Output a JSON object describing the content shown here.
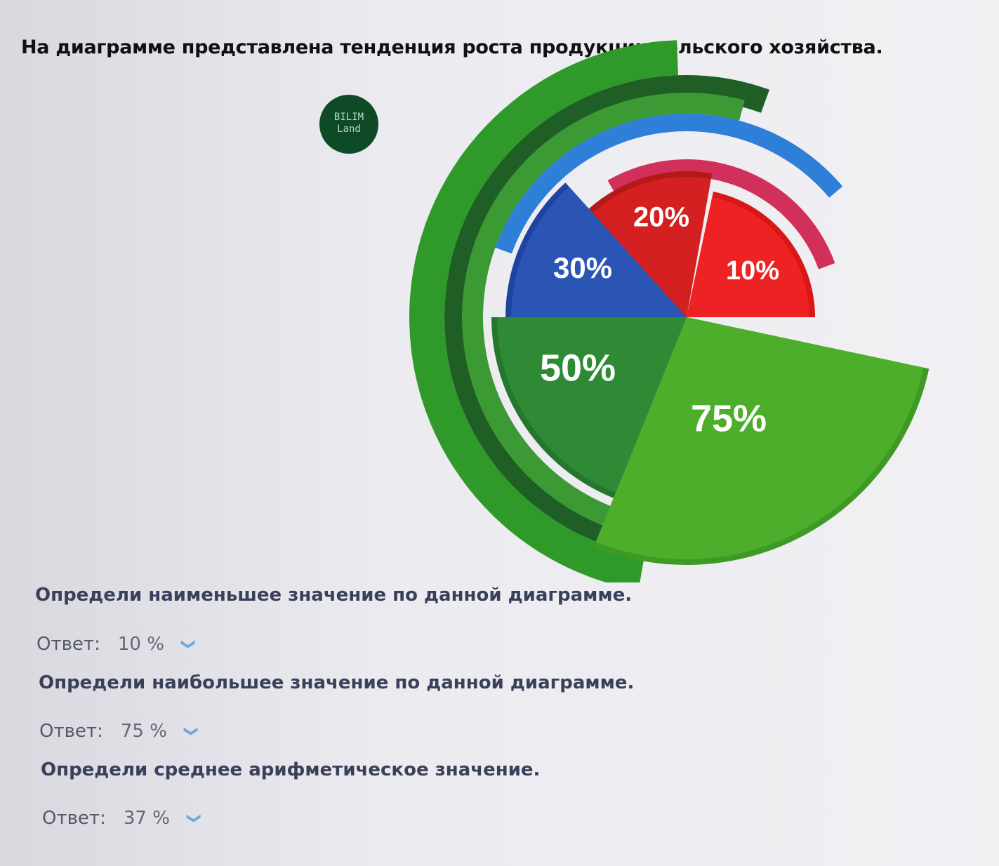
{
  "title": "На диаграмме представлена тенденция роста продукции сельского хозяйства.",
  "logo": {
    "line1": "BILIM",
    "line2": "Land"
  },
  "chart_data": {
    "type": "pie",
    "title": "",
    "slices": [
      {
        "label": "75%",
        "value": 75,
        "color": "#4cae2a"
      },
      {
        "label": "50%",
        "value": 50,
        "color": "#2f8a35"
      },
      {
        "label": "30%",
        "value": 30,
        "color": "#2a55b5"
      },
      {
        "label": "20%",
        "value": 20,
        "color": "#d42020"
      },
      {
        "label": "10%",
        "value": 10,
        "color": "#ee2222"
      }
    ]
  },
  "questions": [
    {
      "text": "Определи наименьшее значение по данной диаграмме.",
      "answer_label": "Ответ:",
      "answer": "10 %"
    },
    {
      "text": "Определи наибольшее значение по данной диаграмме.",
      "answer_label": "Ответ:",
      "answer": "75 %"
    },
    {
      "text": "Определи среднее арифметическое значение.",
      "answer_label": "Ответ:",
      "answer": "37 %"
    }
  ]
}
